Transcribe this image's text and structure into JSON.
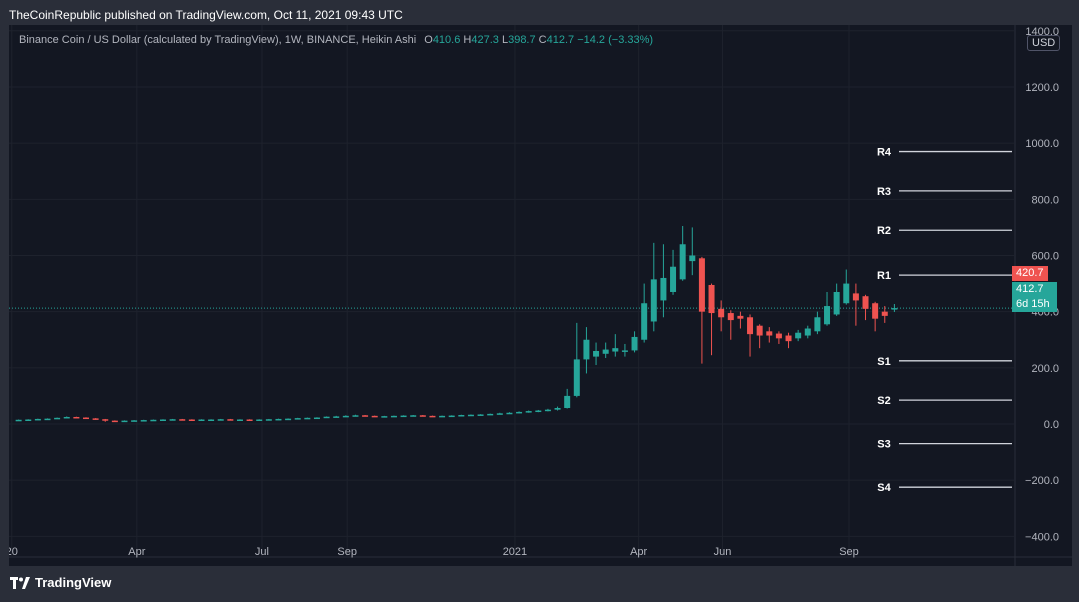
{
  "publisher_line": "TheCoinRepublic published on TradingView.com, Oct 11, 2021 09:43 UTC",
  "legend": {
    "symbol": "Binance Coin / US Dollar (calculated by TradingView), 1W, BINANCE, Heikin Ashi",
    "open_label": "O",
    "open": "410.6",
    "high_label": "H",
    "high": "427.3",
    "low_label": "L",
    "low": "398.7",
    "close_label": "C",
    "close": "412.7",
    "change": "−14.2 (−3.33%)"
  },
  "currency": "USD",
  "price_tags": {
    "high_mark": "420.7",
    "last": "412.7",
    "countdown": "6d 15h"
  },
  "brand": "TradingView",
  "colors": {
    "up": "#26a69a",
    "down": "#ef5350",
    "background": "#131722",
    "frame": "#2a2e39"
  },
  "chart_data": {
    "type": "candlestick",
    "subtype": "heikin-ashi",
    "interval": "1W",
    "grid": true,
    "y_ticks": [
      1400,
      1200,
      1000,
      800,
      600,
      400,
      200,
      0,
      -200,
      -400
    ],
    "y_tick_labels": [
      "1400.0",
      "1200.0",
      "1000.0",
      "800.0",
      "600.0",
      "400.0",
      "200.0",
      "0.0",
      "−200.0",
      "−400.0"
    ],
    "ylim": [
      -470,
      1410
    ],
    "x_ticks": [
      {
        "date": "2020-01-01",
        "label": "20"
      },
      {
        "date": "2020-04-01",
        "label": "Apr"
      },
      {
        "date": "2020-07-01",
        "label": "Jul"
      },
      {
        "date": "2020-09-01",
        "label": "Sep"
      },
      {
        "date": "2021-01-01",
        "label": "2021"
      },
      {
        "date": "2021-04-01",
        "label": "Apr"
      },
      {
        "date": "2021-06-01",
        "label": "Jun"
      },
      {
        "date": "2021-09-01",
        "label": "Sep"
      }
    ],
    "xlim": [
      "2019-12-30",
      "2021-12-30"
    ],
    "current_price": 412.7,
    "pivot_levels": [
      {
        "label": "R4",
        "value": 970
      },
      {
        "label": "R3",
        "value": 830
      },
      {
        "label": "R2",
        "value": 690
      },
      {
        "label": "R1",
        "value": 530
      },
      {
        "label": "S1",
        "value": 225
      },
      {
        "label": "S2",
        "value": 85
      },
      {
        "label": "S3",
        "value": -70
      },
      {
        "label": "S4",
        "value": -225
      }
    ],
    "candles": [
      {
        "date": "2020-01-06",
        "o": 14,
        "h": 16,
        "l": 13,
        "c": 15
      },
      {
        "date": "2020-01-13",
        "o": 15,
        "h": 17,
        "l": 14,
        "c": 16
      },
      {
        "date": "2020-01-20",
        "o": 16,
        "h": 19,
        "l": 15,
        "c": 18
      },
      {
        "date": "2020-01-27",
        "o": 18,
        "h": 20,
        "l": 16,
        "c": 19
      },
      {
        "date": "2020-02-03",
        "o": 19,
        "h": 23,
        "l": 18,
        "c": 22
      },
      {
        "date": "2020-02-10",
        "o": 22,
        "h": 27,
        "l": 21,
        "c": 25
      },
      {
        "date": "2020-02-17",
        "o": 25,
        "h": 26,
        "l": 21,
        "c": 23
      },
      {
        "date": "2020-02-24",
        "o": 23,
        "h": 24,
        "l": 19,
        "c": 20
      },
      {
        "date": "2020-03-02",
        "o": 20,
        "h": 21,
        "l": 15,
        "c": 17
      },
      {
        "date": "2020-03-09",
        "o": 17,
        "h": 18,
        "l": 8,
        "c": 12
      },
      {
        "date": "2020-03-16",
        "o": 12,
        "h": 13,
        "l": 9,
        "c": 11
      },
      {
        "date": "2020-03-23",
        "o": 11,
        "h": 13,
        "l": 10,
        "c": 12
      },
      {
        "date": "2020-03-30",
        "o": 12,
        "h": 14,
        "l": 11,
        "c": 13
      },
      {
        "date": "2020-04-06",
        "o": 13,
        "h": 15,
        "l": 12,
        "c": 14
      },
      {
        "date": "2020-04-13",
        "o": 14,
        "h": 16,
        "l": 13,
        "c": 15
      },
      {
        "date": "2020-04-20",
        "o": 15,
        "h": 17,
        "l": 14,
        "c": 16
      },
      {
        "date": "2020-04-27",
        "o": 16,
        "h": 18,
        "l": 15,
        "c": 17
      },
      {
        "date": "2020-05-04",
        "o": 17,
        "h": 18,
        "l": 15,
        "c": 16
      },
      {
        "date": "2020-05-11",
        "o": 16,
        "h": 17,
        "l": 14,
        "c": 15
      },
      {
        "date": "2020-05-18",
        "o": 15,
        "h": 17,
        "l": 14,
        "c": 16
      },
      {
        "date": "2020-05-25",
        "o": 16,
        "h": 17,
        "l": 15,
        "c": 16
      },
      {
        "date": "2020-06-01",
        "o": 16,
        "h": 18,
        "l": 15,
        "c": 17
      },
      {
        "date": "2020-06-08",
        "o": 17,
        "h": 18,
        "l": 15,
        "c": 16
      },
      {
        "date": "2020-06-15",
        "o": 16,
        "h": 17,
        "l": 15,
        "c": 16
      },
      {
        "date": "2020-06-22",
        "o": 16,
        "h": 17,
        "l": 14,
        "c": 15
      },
      {
        "date": "2020-06-29",
        "o": 15,
        "h": 17,
        "l": 14,
        "c": 16
      },
      {
        "date": "2020-07-06",
        "o": 16,
        "h": 18,
        "l": 15,
        "c": 17
      },
      {
        "date": "2020-07-13",
        "o": 17,
        "h": 19,
        "l": 16,
        "c": 18
      },
      {
        "date": "2020-07-20",
        "o": 18,
        "h": 20,
        "l": 17,
        "c": 19
      },
      {
        "date": "2020-07-27",
        "o": 19,
        "h": 22,
        "l": 18,
        "c": 21
      },
      {
        "date": "2020-08-03",
        "o": 21,
        "h": 23,
        "l": 19,
        "c": 22
      },
      {
        "date": "2020-08-10",
        "o": 22,
        "h": 24,
        "l": 20,
        "c": 23
      },
      {
        "date": "2020-08-17",
        "o": 23,
        "h": 27,
        "l": 22,
        "c": 26
      },
      {
        "date": "2020-08-24",
        "o": 26,
        "h": 29,
        "l": 24,
        "c": 27
      },
      {
        "date": "2020-08-31",
        "o": 27,
        "h": 31,
        "l": 25,
        "c": 29
      },
      {
        "date": "2020-09-07",
        "o": 29,
        "h": 33,
        "l": 27,
        "c": 31
      },
      {
        "date": "2020-09-14",
        "o": 31,
        "h": 32,
        "l": 27,
        "c": 29
      },
      {
        "date": "2020-09-21",
        "o": 29,
        "h": 30,
        "l": 25,
        "c": 27
      },
      {
        "date": "2020-09-28",
        "o": 27,
        "h": 29,
        "l": 26,
        "c": 28
      },
      {
        "date": "2020-10-05",
        "o": 28,
        "h": 30,
        "l": 27,
        "c": 29
      },
      {
        "date": "2020-10-12",
        "o": 29,
        "h": 31,
        "l": 28,
        "c": 30
      },
      {
        "date": "2020-10-19",
        "o": 30,
        "h": 32,
        "l": 28,
        "c": 31
      },
      {
        "date": "2020-10-26",
        "o": 31,
        "h": 32,
        "l": 28,
        "c": 29
      },
      {
        "date": "2020-11-02",
        "o": 29,
        "h": 30,
        "l": 27,
        "c": 28
      },
      {
        "date": "2020-11-09",
        "o": 28,
        "h": 30,
        "l": 27,
        "c": 29
      },
      {
        "date": "2020-11-16",
        "o": 29,
        "h": 31,
        "l": 28,
        "c": 30
      },
      {
        "date": "2020-11-23",
        "o": 30,
        "h": 33,
        "l": 29,
        "c": 32
      },
      {
        "date": "2020-11-30",
        "o": 32,
        "h": 34,
        "l": 30,
        "c": 33
      },
      {
        "date": "2020-12-07",
        "o": 33,
        "h": 35,
        "l": 31,
        "c": 34
      },
      {
        "date": "2020-12-14",
        "o": 34,
        "h": 37,
        "l": 33,
        "c": 36
      },
      {
        "date": "2020-12-21",
        "o": 36,
        "h": 40,
        "l": 34,
        "c": 38
      },
      {
        "date": "2020-12-28",
        "o": 38,
        "h": 42,
        "l": 36,
        "c": 40
      },
      {
        "date": "2021-01-04",
        "o": 40,
        "h": 45,
        "l": 38,
        "c": 43
      },
      {
        "date": "2021-01-11",
        "o": 43,
        "h": 48,
        "l": 40,
        "c": 46
      },
      {
        "date": "2021-01-18",
        "o": 46,
        "h": 50,
        "l": 42,
        "c": 48
      },
      {
        "date": "2021-01-25",
        "o": 48,
        "h": 54,
        "l": 45,
        "c": 51
      },
      {
        "date": "2021-02-01",
        "o": 51,
        "h": 62,
        "l": 48,
        "c": 57
      },
      {
        "date": "2021-02-08",
        "o": 57,
        "h": 125,
        "l": 55,
        "c": 100
      },
      {
        "date": "2021-02-15",
        "o": 100,
        "h": 360,
        "l": 95,
        "c": 230
      },
      {
        "date": "2021-02-22",
        "o": 230,
        "h": 345,
        "l": 180,
        "c": 300
      },
      {
        "date": "2021-03-01",
        "o": 240,
        "h": 290,
        "l": 210,
        "c": 260
      },
      {
        "date": "2021-03-08",
        "o": 250,
        "h": 290,
        "l": 235,
        "c": 265
      },
      {
        "date": "2021-03-15",
        "o": 258,
        "h": 320,
        "l": 240,
        "c": 270
      },
      {
        "date": "2021-03-22",
        "o": 262,
        "h": 285,
        "l": 240,
        "c": 262
      },
      {
        "date": "2021-03-29",
        "o": 262,
        "h": 330,
        "l": 255,
        "c": 310
      },
      {
        "date": "2021-04-05",
        "o": 300,
        "h": 500,
        "l": 290,
        "c": 430
      },
      {
        "date": "2021-04-12",
        "o": 365,
        "h": 645,
        "l": 330,
        "c": 515
      },
      {
        "date": "2021-04-19",
        "o": 440,
        "h": 640,
        "l": 380,
        "c": 520
      },
      {
        "date": "2021-04-26",
        "o": 470,
        "h": 620,
        "l": 460,
        "c": 560
      },
      {
        "date": "2021-05-03",
        "o": 515,
        "h": 705,
        "l": 510,
        "c": 640
      },
      {
        "date": "2021-05-10",
        "o": 580,
        "h": 700,
        "l": 530,
        "c": 600
      },
      {
        "date": "2021-05-17",
        "o": 590,
        "h": 595,
        "l": 215,
        "c": 400
      },
      {
        "date": "2021-05-24",
        "o": 495,
        "h": 500,
        "l": 245,
        "c": 395
      },
      {
        "date": "2021-05-31",
        "o": 410,
        "h": 440,
        "l": 330,
        "c": 380
      },
      {
        "date": "2021-06-07",
        "o": 395,
        "h": 405,
        "l": 300,
        "c": 370
      },
      {
        "date": "2021-06-14",
        "o": 385,
        "h": 400,
        "l": 340,
        "c": 375
      },
      {
        "date": "2021-06-21",
        "o": 380,
        "h": 390,
        "l": 240,
        "c": 320
      },
      {
        "date": "2021-06-28",
        "o": 350,
        "h": 355,
        "l": 270,
        "c": 315
      },
      {
        "date": "2021-07-05",
        "o": 330,
        "h": 345,
        "l": 290,
        "c": 315
      },
      {
        "date": "2021-07-12",
        "o": 322,
        "h": 330,
        "l": 285,
        "c": 305
      },
      {
        "date": "2021-07-19",
        "o": 315,
        "h": 325,
        "l": 270,
        "c": 295
      },
      {
        "date": "2021-07-26",
        "o": 305,
        "h": 335,
        "l": 295,
        "c": 325
      },
      {
        "date": "2021-08-02",
        "o": 315,
        "h": 350,
        "l": 305,
        "c": 340
      },
      {
        "date": "2021-08-09",
        "o": 330,
        "h": 400,
        "l": 320,
        "c": 380
      },
      {
        "date": "2021-08-16",
        "o": 355,
        "h": 470,
        "l": 350,
        "c": 420
      },
      {
        "date": "2021-08-23",
        "o": 390,
        "h": 500,
        "l": 385,
        "c": 470
      },
      {
        "date": "2021-08-30",
        "o": 430,
        "h": 550,
        "l": 425,
        "c": 500
      },
      {
        "date": "2021-09-06",
        "o": 465,
        "h": 500,
        "l": 350,
        "c": 440
      },
      {
        "date": "2021-09-13",
        "o": 455,
        "h": 460,
        "l": 370,
        "c": 410
      },
      {
        "date": "2021-09-20",
        "o": 430,
        "h": 435,
        "l": 330,
        "c": 375
      },
      {
        "date": "2021-09-27",
        "o": 400,
        "h": 420,
        "l": 360,
        "c": 385
      },
      {
        "date": "2021-10-04",
        "o": 410.6,
        "h": 427.3,
        "l": 398.7,
        "c": 412.7
      }
    ]
  }
}
